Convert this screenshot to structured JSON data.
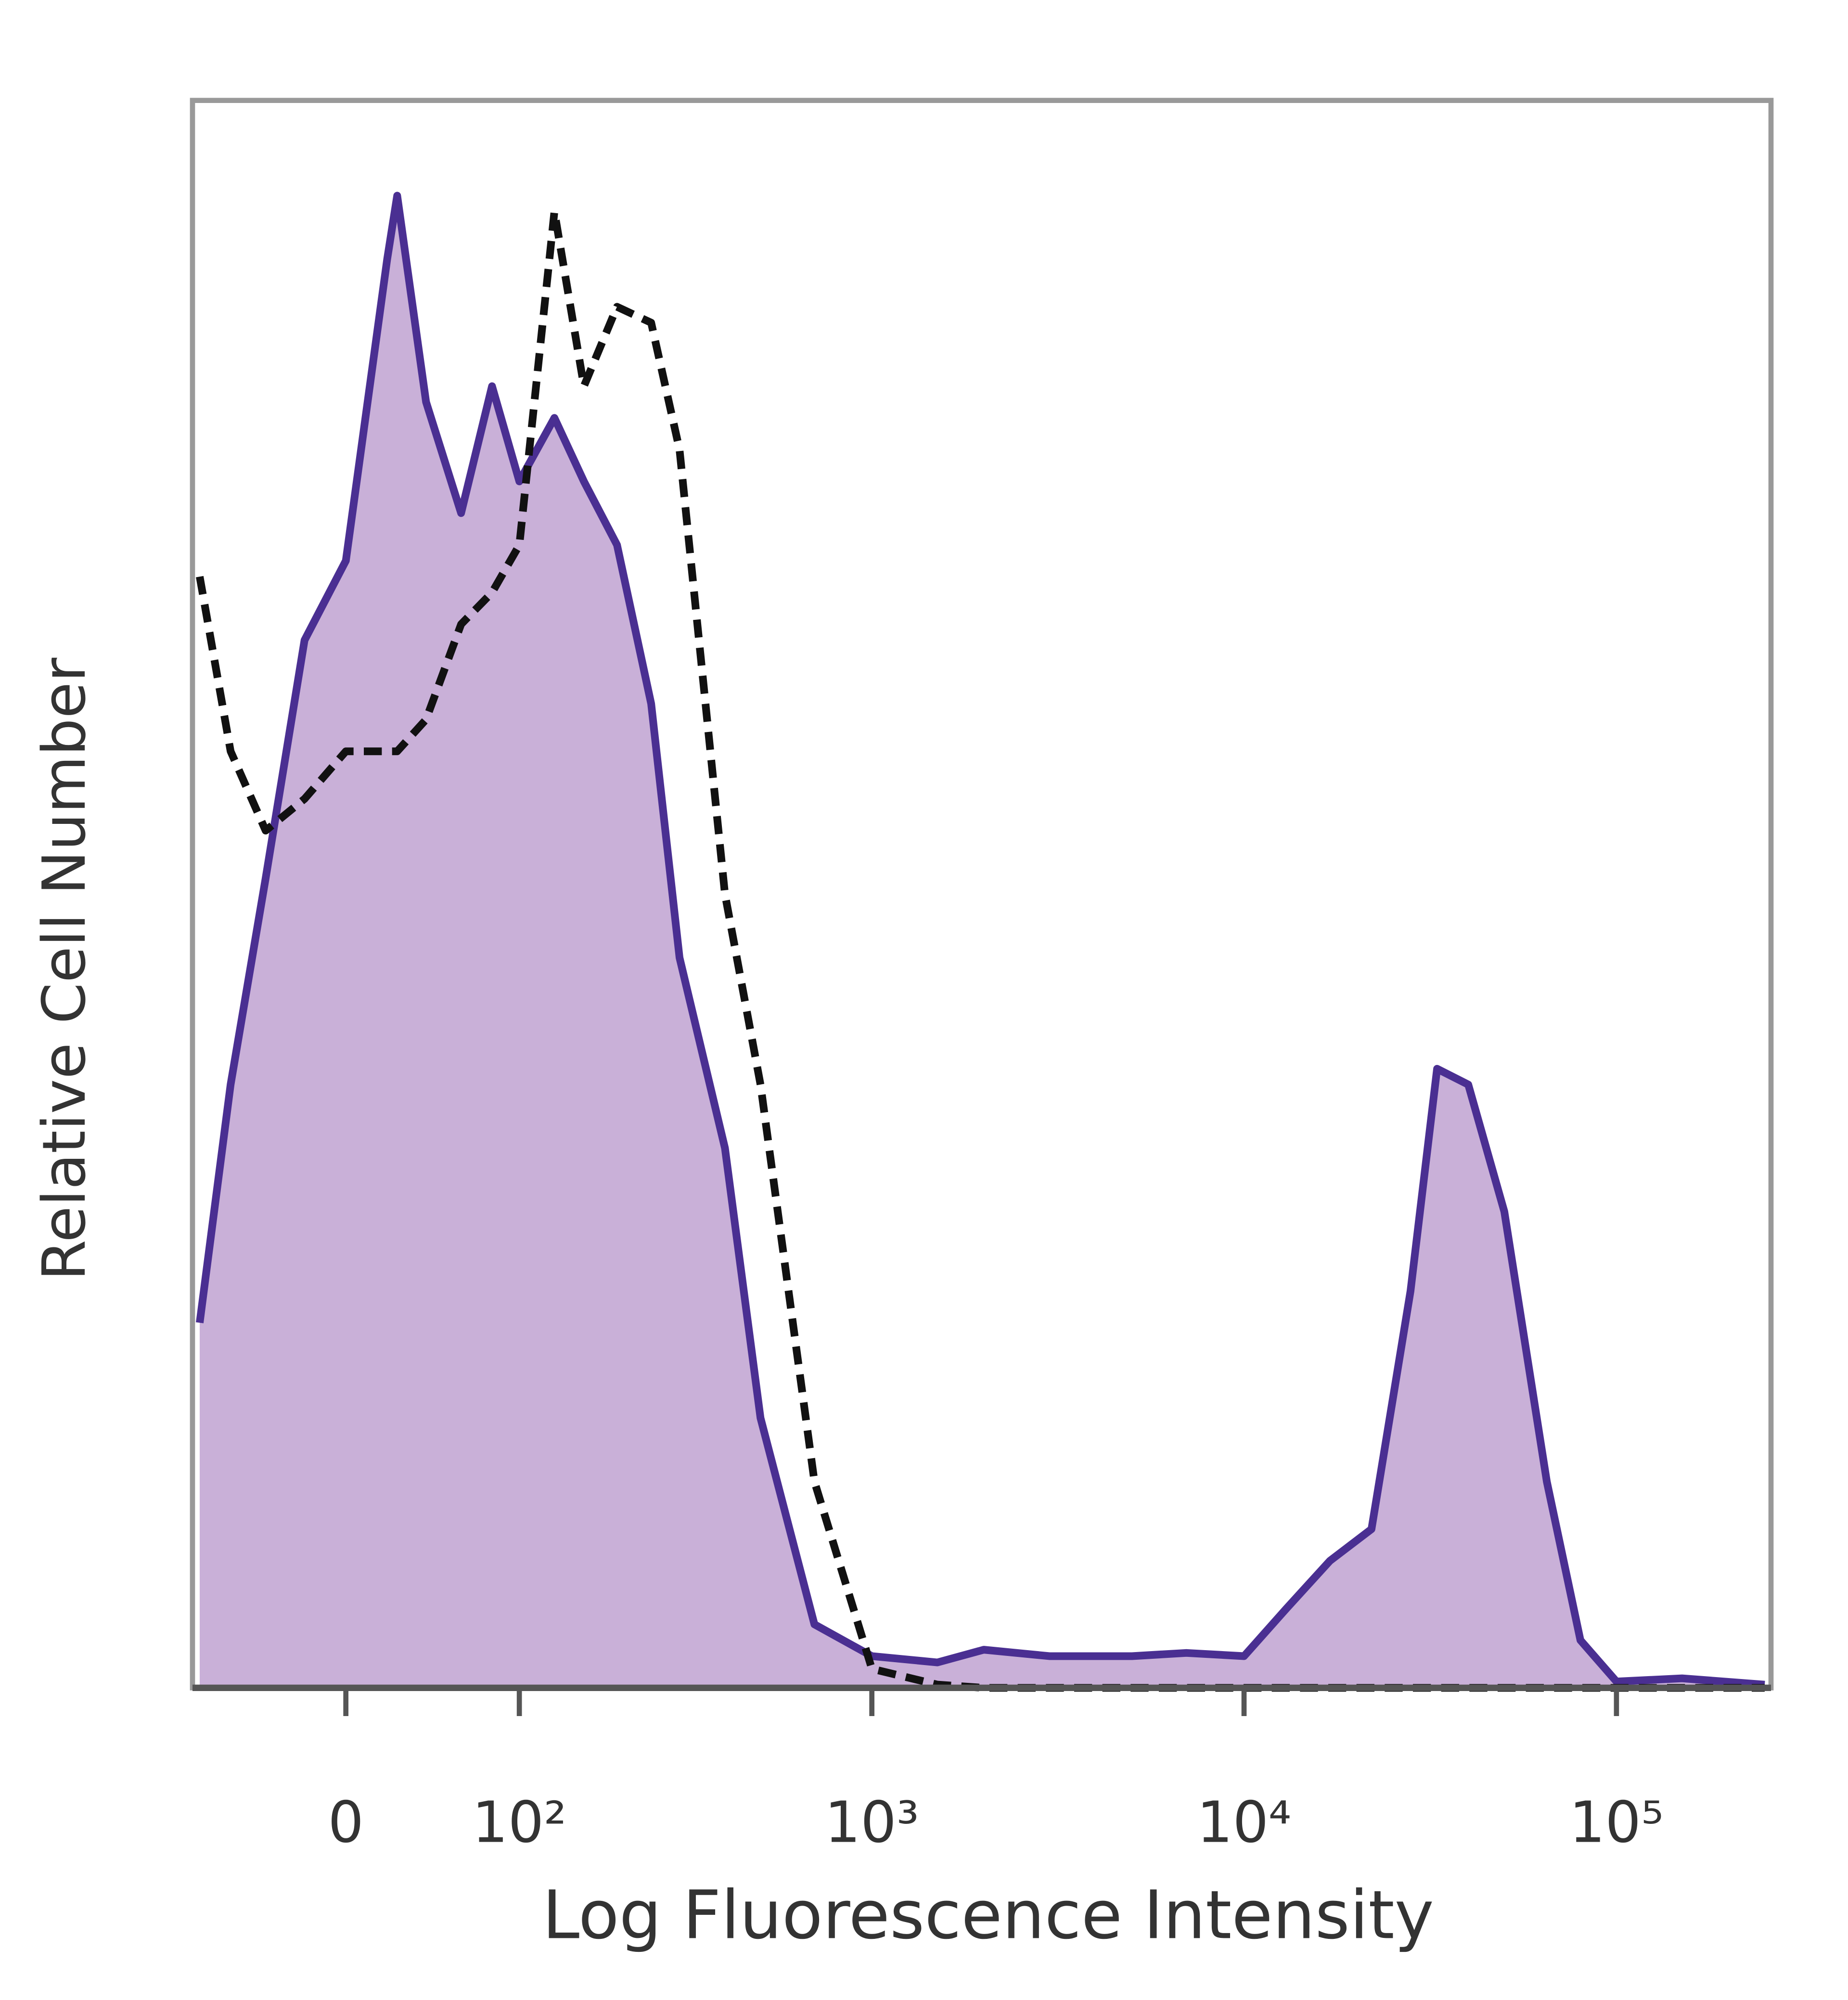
{
  "chart_data": {
    "type": "histogram-overlay",
    "x_label": "Log Fluorescence Intensity",
    "y_label": "Relative Cell Number",
    "xscale": "biexponential",
    "xlim": [
      -85,
      260000
    ],
    "ylim": [
      0,
      100
    ],
    "xticks": [
      0,
      {
        "value": 100,
        "label": "10²"
      },
      {
        "value": 1000,
        "label": "10³"
      },
      {
        "value": 10000,
        "label": "10⁴"
      },
      {
        "value": 100000,
        "label": "10⁵"
      }
    ],
    "x": [
      -80,
      -60,
      -40,
      -20,
      0,
      20,
      25,
      40,
      60,
      80,
      100,
      130,
      160,
      200,
      250,
      300,
      400,
      500,
      700,
      1000,
      1500,
      2000,
      3000,
      5000,
      7000,
      10000,
      13000,
      17000,
      22000,
      28000,
      33000,
      40000,
      50000,
      65000,
      80000,
      100000,
      150000,
      250000
    ],
    "series": [
      {
        "color": "#4a2f92",
        "fill": "#c9b0d8",
        "dashed": false,
        "values": [
          23,
          38,
          51,
          66,
          71,
          90,
          94,
          81,
          74,
          82,
          76,
          80,
          76,
          72,
          62,
          46,
          34,
          17,
          4,
          2,
          1.6,
          2.4,
          2,
          2,
          2.2,
          2,
          5,
          8,
          10,
          25,
          39,
          38,
          30,
          13,
          3,
          0.4,
          0.6,
          0.2
        ]
      },
      {
        "color": "#111111",
        "fill": null,
        "dashed": true,
        "values": [
          70,
          59,
          54,
          56,
          59,
          59,
          59,
          61,
          67,
          69,
          72,
          93,
          82,
          87,
          86,
          78,
          50,
          38,
          13,
          1.2,
          0.2,
          0,
          0,
          0,
          0,
          0,
          0,
          0,
          0,
          0,
          0,
          0,
          0,
          0,
          0,
          0,
          0,
          0
        ]
      }
    ]
  }
}
